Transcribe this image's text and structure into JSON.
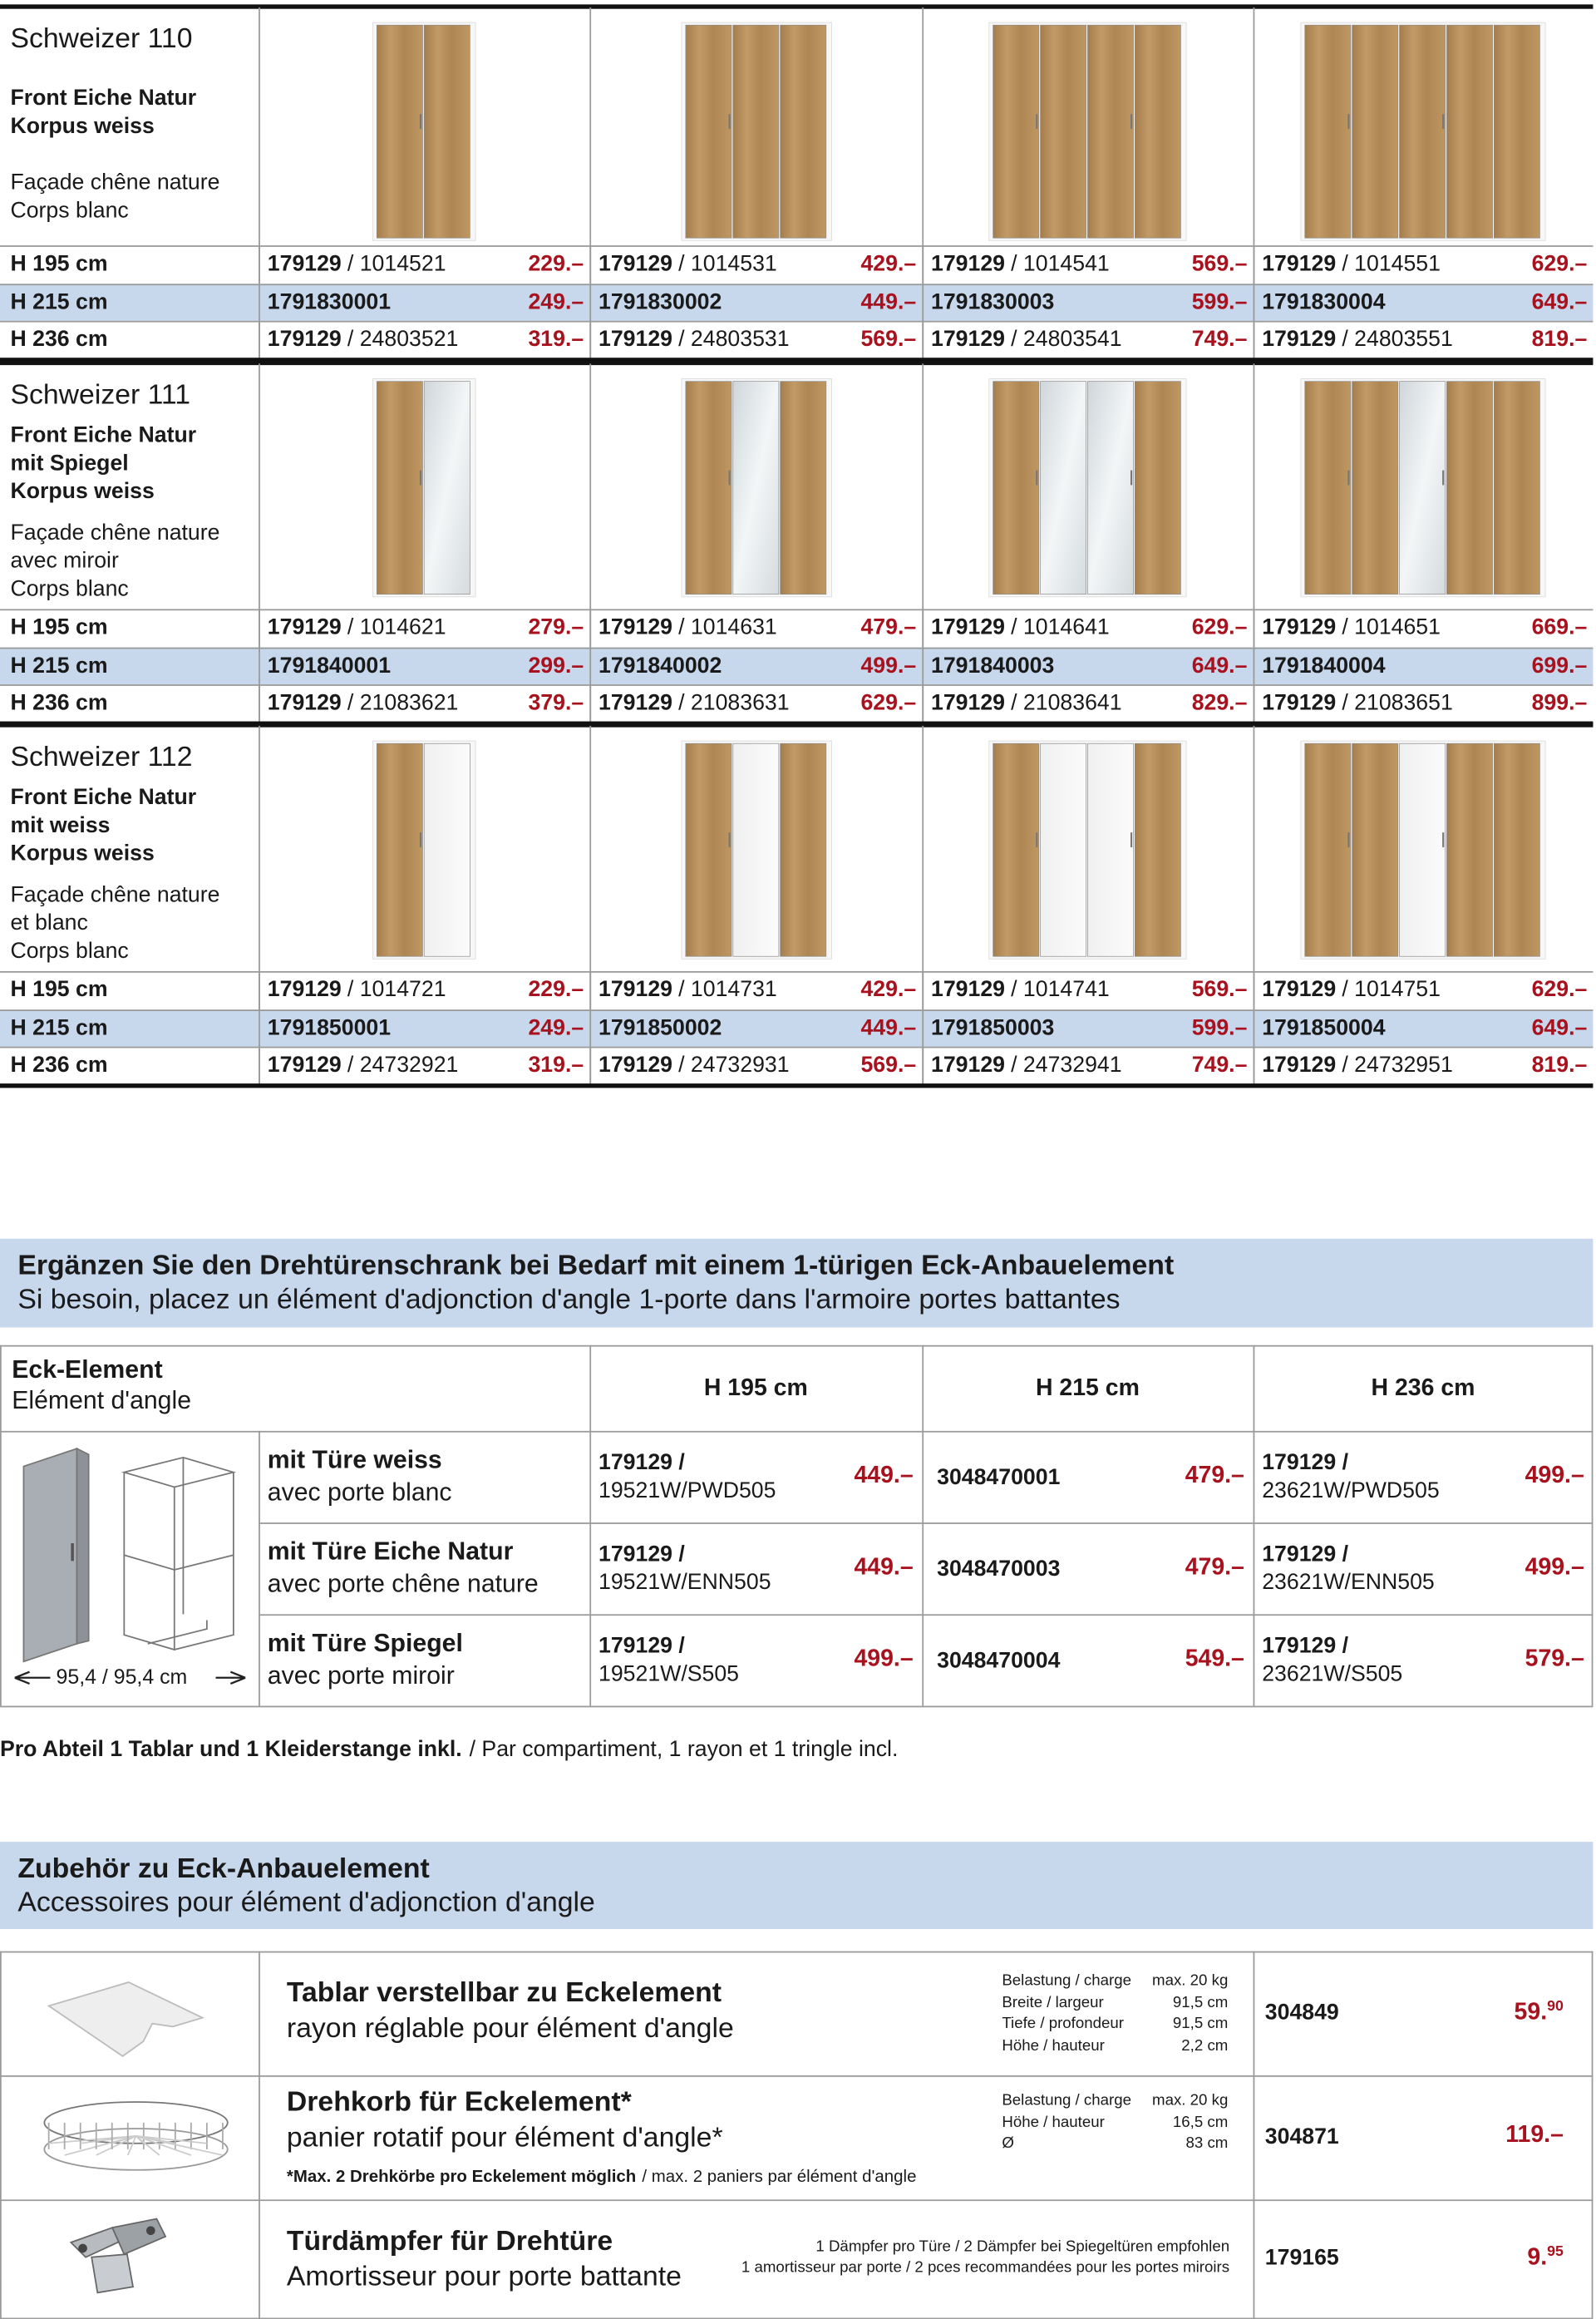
{
  "products": [
    {
      "name": "Schweizer 110",
      "desc_de": [
        "Front Eiche Natur",
        "Korpus weiss"
      ],
      "desc_fr": [
        "Façade chêne nature",
        "Corps blanc"
      ],
      "rows": [
        {
          "height": "H 195 cm",
          "items": [
            {
              "code": "179129",
              "rest": "/ 1014521",
              "price": "229.–"
            },
            {
              "code": "179129",
              "rest": "/ 1014531",
              "price": "429.–"
            },
            {
              "code": "179129",
              "rest": "/ 1014541",
              "price": "569.–"
            },
            {
              "code": "179129",
              "rest": "/ 1014551",
              "price": "629.–"
            }
          ]
        },
        {
          "height": "H 215 cm",
          "items": [
            {
              "code": "1791830001",
              "price": "249.–"
            },
            {
              "code": "1791830002",
              "price": "449.–"
            },
            {
              "code": "1791830003",
              "price": "599.–"
            },
            {
              "code": "1791830004",
              "price": "649.–"
            }
          ]
        },
        {
          "height": "H 236 cm",
          "items": [
            {
              "code": "179129",
              "rest": "/ 24803521",
              "price": "319.–"
            },
            {
              "code": "179129",
              "rest": "/ 24803531",
              "price": "569.–"
            },
            {
              "code": "179129",
              "rest": "/ 24803541",
              "price": "749.–"
            },
            {
              "code": "179129",
              "rest": "/ 24803551",
              "price": "819.–"
            }
          ]
        }
      ]
    },
    {
      "name": "Schweizer 111",
      "desc_de": [
        "Front Eiche Natur",
        "mit Spiegel",
        "Korpus weiss"
      ],
      "desc_fr": [
        "Façade chêne nature",
        "avec miroir",
        "Corps blanc"
      ],
      "rows": [
        {
          "height": "H 195 cm",
          "items": [
            {
              "code": "179129",
              "rest": "/ 1014621",
              "price": "279.–"
            },
            {
              "code": "179129",
              "rest": "/ 1014631",
              "price": "479.–"
            },
            {
              "code": "179129",
              "rest": "/ 1014641",
              "price": "629.–"
            },
            {
              "code": "179129",
              "rest": "/ 1014651",
              "price": "669.–"
            }
          ]
        },
        {
          "height": "H 215 cm",
          "items": [
            {
              "code": "1791840001",
              "price": "299.–"
            },
            {
              "code": "1791840002",
              "price": "499.–"
            },
            {
              "code": "1791840003",
              "price": "649.–"
            },
            {
              "code": "1791840004",
              "price": "699.–"
            }
          ]
        },
        {
          "height": "H 236 cm",
          "items": [
            {
              "code": "179129",
              "rest": "/ 21083621",
              "price": "379.–"
            },
            {
              "code": "179129",
              "rest": "/ 21083631",
              "price": "629.–"
            },
            {
              "code": "179129",
              "rest": "/ 21083641",
              "price": "829.–"
            },
            {
              "code": "179129",
              "rest": "/ 21083651",
              "price": "899.–"
            }
          ]
        }
      ]
    },
    {
      "name": "Schweizer 112",
      "desc_de": [
        "Front Eiche Natur",
        "mit weiss",
        "Korpus weiss"
      ],
      "desc_fr": [
        "Façade chêne nature",
        "et blanc",
        "Corps blanc"
      ],
      "rows": [
        {
          "height": "H 195 cm",
          "items": [
            {
              "code": "179129",
              "rest": "/ 1014721",
              "price": "229.–"
            },
            {
              "code": "179129",
              "rest": "/ 1014731",
              "price": "429.–"
            },
            {
              "code": "179129",
              "rest": "/ 1014741",
              "price": "569.–"
            },
            {
              "code": "179129",
              "rest": "/ 1014751",
              "price": "629.–"
            }
          ]
        },
        {
          "height": "H 215 cm",
          "items": [
            {
              "code": "1791850001",
              "price": "249.–"
            },
            {
              "code": "1791850002",
              "price": "449.–"
            },
            {
              "code": "1791850003",
              "price": "599.–"
            },
            {
              "code": "1791850004",
              "price": "649.–"
            }
          ]
        },
        {
          "height": "H 236 cm",
          "items": [
            {
              "code": "179129",
              "rest": "/ 24732921",
              "price": "319.–"
            },
            {
              "code": "179129",
              "rest": "/ 24732931",
              "price": "569.–"
            },
            {
              "code": "179129",
              "rest": "/ 24732941",
              "price": "749.–"
            },
            {
              "code": "179129",
              "rest": "/ 24732951",
              "price": "819.–"
            }
          ]
        }
      ]
    }
  ],
  "eck": {
    "title_de": "Ergänzen Sie den Drehtürenschrank bei Bedarf mit einem 1-türigen Eck-Anbauelement",
    "title_fr": "Si besoin, placez un élément d'adjonction d'angle 1-porte dans l'armoire portes battantes",
    "label_de": "Eck-Element",
    "label_fr": "Elément d'angle",
    "heights": [
      "H 195 cm",
      "H 215 cm",
      "H 236 cm"
    ],
    "dimension": "95,4 / 95,4 cm",
    "rows": [
      {
        "de": "mit Türe weiss",
        "fr": "avec porte blanc",
        "cells": [
          {
            "code": "179129 /",
            "code2": "19521W/PWD505",
            "price": "449.–"
          },
          {
            "code": "3048470001",
            "price": "479.–"
          },
          {
            "code": "179129 /",
            "code2": "23621W/PWD505",
            "price": "499.–"
          }
        ]
      },
      {
        "de": "mit Türe Eiche Natur",
        "fr": "avec porte chêne nature",
        "cells": [
          {
            "code": "179129 /",
            "code2": "19521W/ENN505",
            "price": "449.–"
          },
          {
            "code": "3048470003",
            "price": "479.–"
          },
          {
            "code": "179129 /",
            "code2": "23621W/ENN505",
            "price": "499.–"
          }
        ]
      },
      {
        "de": "mit Türe Spiegel",
        "fr": "avec porte miroir",
        "cells": [
          {
            "code": "179129 /",
            "code2": "19521W/S505",
            "price": "499.–"
          },
          {
            "code": "3048470004",
            "price": "549.–"
          },
          {
            "code": "179129 /",
            "code2": "23621W/S505",
            "price": "579.–"
          }
        ]
      }
    ],
    "note_bold": "Pro Abteil 1 Tablar und 1 Kleiderstange inkl.",
    "note": "/ Par compartiment, 1 rayon et 1 tringle incl."
  },
  "accessories": {
    "title_de": "Zubehör zu Eck-Anbauelement",
    "title_fr": "Accessoires pour élément d'adjonction d'angle",
    "items": [
      {
        "name_de": "Tablar verstellbar zu Eckelement",
        "name_fr": "rayon réglable pour élément d'angle",
        "specs": [
          [
            "Belastung / charge",
            "max. 20 kg"
          ],
          [
            "Breite / largeur",
            "91,5 cm"
          ],
          [
            "Tiefe / profondeur",
            "91,5 cm"
          ],
          [
            "Höhe / hauteur",
            "2,2 cm"
          ]
        ],
        "code": "304849",
        "price": "59.",
        "price_cents": "90"
      },
      {
        "name_de": "Drehkorb für Eckelement*",
        "name_fr": "panier rotatif pour élément d'angle*",
        "specs": [
          [
            "Belastung / charge",
            "max. 20 kg"
          ],
          [
            "Höhe / hauteur",
            "16,5 cm"
          ],
          [
            "Ø",
            "83 cm"
          ]
        ],
        "footnote_bold": "*Max. 2 Drehkörbe pro Eckelement möglich",
        "footnote": "/ max. 2 paniers par élément d'angle",
        "code": "304871",
        "price": "119.–"
      },
      {
        "name_de": "Türdämpfer für Drehtüre",
        "name_fr": "Amortisseur pour porte battante",
        "spec_lines": [
          "1 Dämpfer pro Türe / 2 Dämpfer bei Spiegeltüren empfohlen",
          "1 amortisseur par porte / 2 pces recommandées pour les portes miroirs"
        ],
        "code": "179165",
        "price": "9.",
        "price_cents": "95"
      }
    ]
  }
}
